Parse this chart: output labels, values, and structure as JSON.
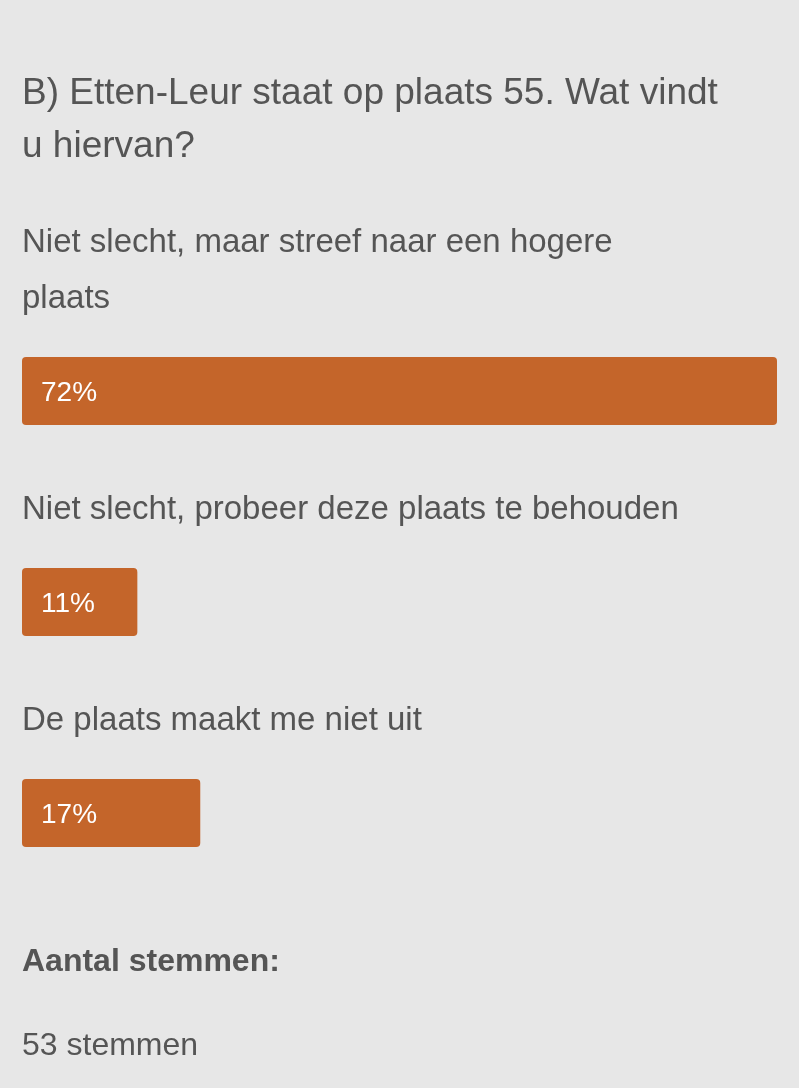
{
  "chart_data": {
    "type": "bar",
    "orientation": "horizontal",
    "title": "B) Etten-Leur staat op plaats 55. Wat vindt u hiervan?",
    "categories": [
      "Niet slecht, maar streef naar een hogere plaats",
      "Niet slecht, probeer deze plaats te behouden",
      "De plaats maakt me niet uit"
    ],
    "values": [
      72,
      11,
      17
    ],
    "value_labels": [
      "72%",
      "11%",
      "17%"
    ],
    "color": "#c4652a",
    "annotations": [
      "Aantal stemmen:",
      "53 stemmen"
    ]
  }
}
